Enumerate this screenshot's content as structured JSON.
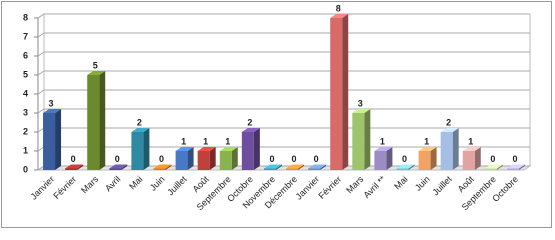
{
  "chart_data": {
    "type": "bar",
    "categories": [
      "Janvier",
      "Février",
      "Mars",
      "Avril",
      "Mai",
      "Juin",
      "Juillet",
      "Août",
      "Septembre",
      "Octobre",
      "Novembre",
      "Décembre",
      "Janvier",
      "Février",
      "Mars",
      "Avril **",
      "Mai",
      "Juin",
      "Juillet",
      "Août",
      "Septembre",
      "Octobre"
    ],
    "values": [
      3,
      0,
      5,
      0,
      2,
      0,
      1,
      1,
      1,
      2,
      0,
      0,
      0,
      8,
      3,
      1,
      0,
      1,
      2,
      1,
      0,
      0
    ],
    "colors": [
      "#3b5f9e",
      "#a8322e",
      "#6b8a2e",
      "#5a4a8c",
      "#2e8aa3",
      "#e07a22",
      "#4a78c8",
      "#c0403c",
      "#8ab24e",
      "#6e4e9e",
      "#3ea0b2",
      "#f08c3c",
      "#6e8ec0",
      "#d86a68",
      "#9ec46c",
      "#9c8cc4",
      "#7cbed0",
      "#f2a262",
      "#a6bee4",
      "#e2a4a2",
      "#bcd8a0",
      "#b2aad4"
    ],
    "ylim": [
      0,
      8
    ],
    "yticks": [
      0,
      1,
      2,
      3,
      4,
      5,
      6,
      7,
      8
    ],
    "grid": true
  }
}
